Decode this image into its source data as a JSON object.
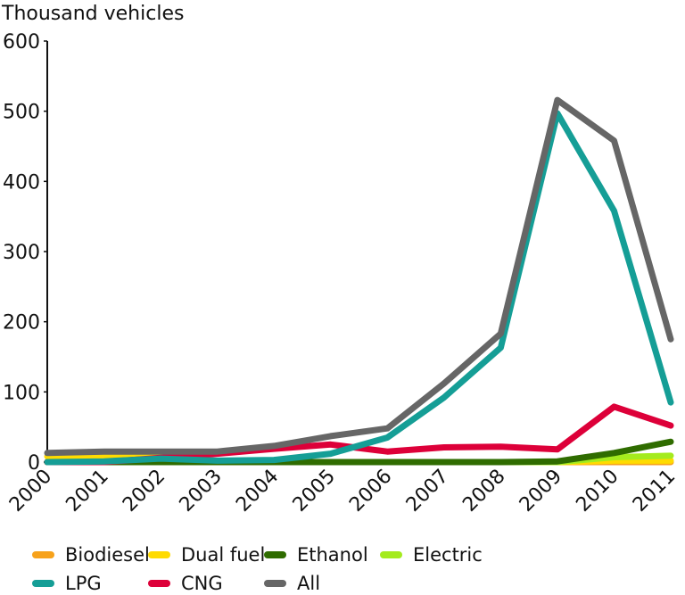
{
  "chart_data": {
    "type": "line",
    "title": "",
    "ylabel": "Thousand vehicles",
    "xlabel": "",
    "x": [
      "2000",
      "2001",
      "2002",
      "2003",
      "2004",
      "2005",
      "2006",
      "2007",
      "2008",
      "2009",
      "2010",
      "2011"
    ],
    "ylim": [
      0,
      600
    ],
    "yticks": [
      0,
      100,
      200,
      300,
      400,
      500,
      600
    ],
    "grid": false,
    "legend_position": "bottom",
    "series": [
      {
        "name": "Biodiesel",
        "color": "#F7A21B",
        "values": [
          0,
          0,
          0,
          0,
          0,
          0,
          0,
          0,
          0,
          0,
          0,
          0
        ]
      },
      {
        "name": "Dual fuel",
        "color": "#FFDB00",
        "values": [
          8,
          8,
          8,
          0,
          0,
          0,
          0,
          0,
          0,
          0,
          2,
          2
        ]
      },
      {
        "name": "Ethanol",
        "color": "#2F6C00",
        "values": [
          0,
          0,
          0,
          0,
          0,
          0,
          0,
          0,
          0,
          1,
          13,
          29
        ]
      },
      {
        "name": "Electric",
        "color": "#A4EB1E",
        "values": [
          0,
          0,
          0,
          0,
          0,
          0,
          0,
          0,
          0,
          0,
          7,
          9
        ]
      },
      {
        "name": "LPG",
        "color": "#159E96",
        "values": [
          0,
          1,
          5,
          2,
          3,
          12,
          35,
          92,
          163,
          497,
          358,
          85
        ]
      },
      {
        "name": "CNG",
        "color": "#DD0039",
        "values": [
          0,
          0,
          6,
          12,
          19,
          25,
          15,
          21,
          22,
          18,
          79,
          52
        ]
      },
      {
        "name": "All",
        "color": "#666666",
        "values": [
          13,
          15,
          15,
          15,
          23,
          37,
          48,
          112,
          183,
          516,
          458,
          175
        ]
      }
    ]
  },
  "legend": {
    "items": [
      {
        "label": "Biodiesel",
        "color": "#F7A21B"
      },
      {
        "label": "Dual fuel",
        "color": "#FFDB00"
      },
      {
        "label": "Ethanol",
        "color": "#2F6C00"
      },
      {
        "label": "Electric",
        "color": "#A4EB1E"
      },
      {
        "label": "LPG",
        "color": "#159E96"
      },
      {
        "label": "CNG",
        "color": "#DD0039"
      },
      {
        "label": "All",
        "color": "#666666"
      }
    ]
  }
}
